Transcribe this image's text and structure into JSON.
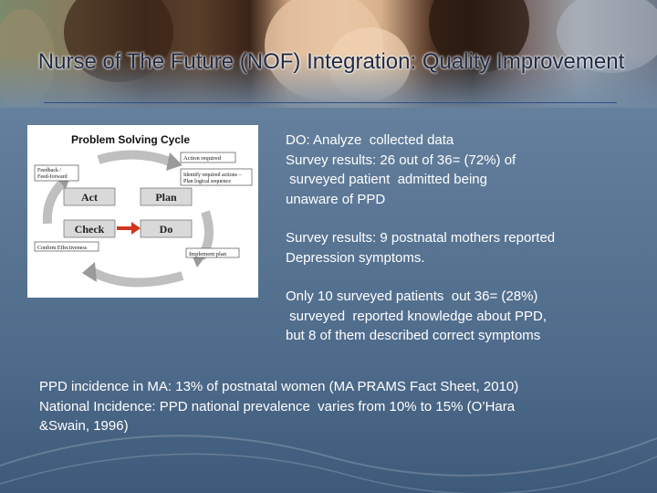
{
  "title": "Nurse of The Future (NOF) Integration: Quality Improvement",
  "diagram": {
    "heading": "Problem Solving Cycle",
    "stage_act": "Act",
    "stage_plan": "Plan",
    "stage_check": "Check",
    "stage_do": "Do",
    "label_action_required": "Action required",
    "label_feedback_line1": "Feedback /",
    "label_feedback_line2": "Feed-forward",
    "label_identify_line1": "Identify required actions –",
    "label_identify_line2": "Plan logical sequence",
    "label_confirm": "Confirm Effectiveness",
    "label_implement": "Implement plan"
  },
  "body": {
    "p1": [
      "DO: Analyze  collected data",
      "Survey results: 26 out of 36= (72%) of",
      " surveyed patient  admitted being",
      "unaware of PPD"
    ],
    "p2": [
      "Survey results: 9 postnatal mothers reported",
      "Depression symptoms."
    ],
    "p3": [
      "Only 10 surveyed patients  out 36= (28%)",
      " surveyed  reported knowledge about PPD,",
      "but 8 of them described correct symptoms"
    ]
  },
  "footer": {
    "lines": [
      "PPD incidence in MA: 13% of postnatal women (MA PRAMS Fact Sheet, 2010)",
      "National Incidence: PPD national prevalence  varies from 10% to 15% (O’Hara",
      "&Swain, 1996)"
    ]
  }
}
